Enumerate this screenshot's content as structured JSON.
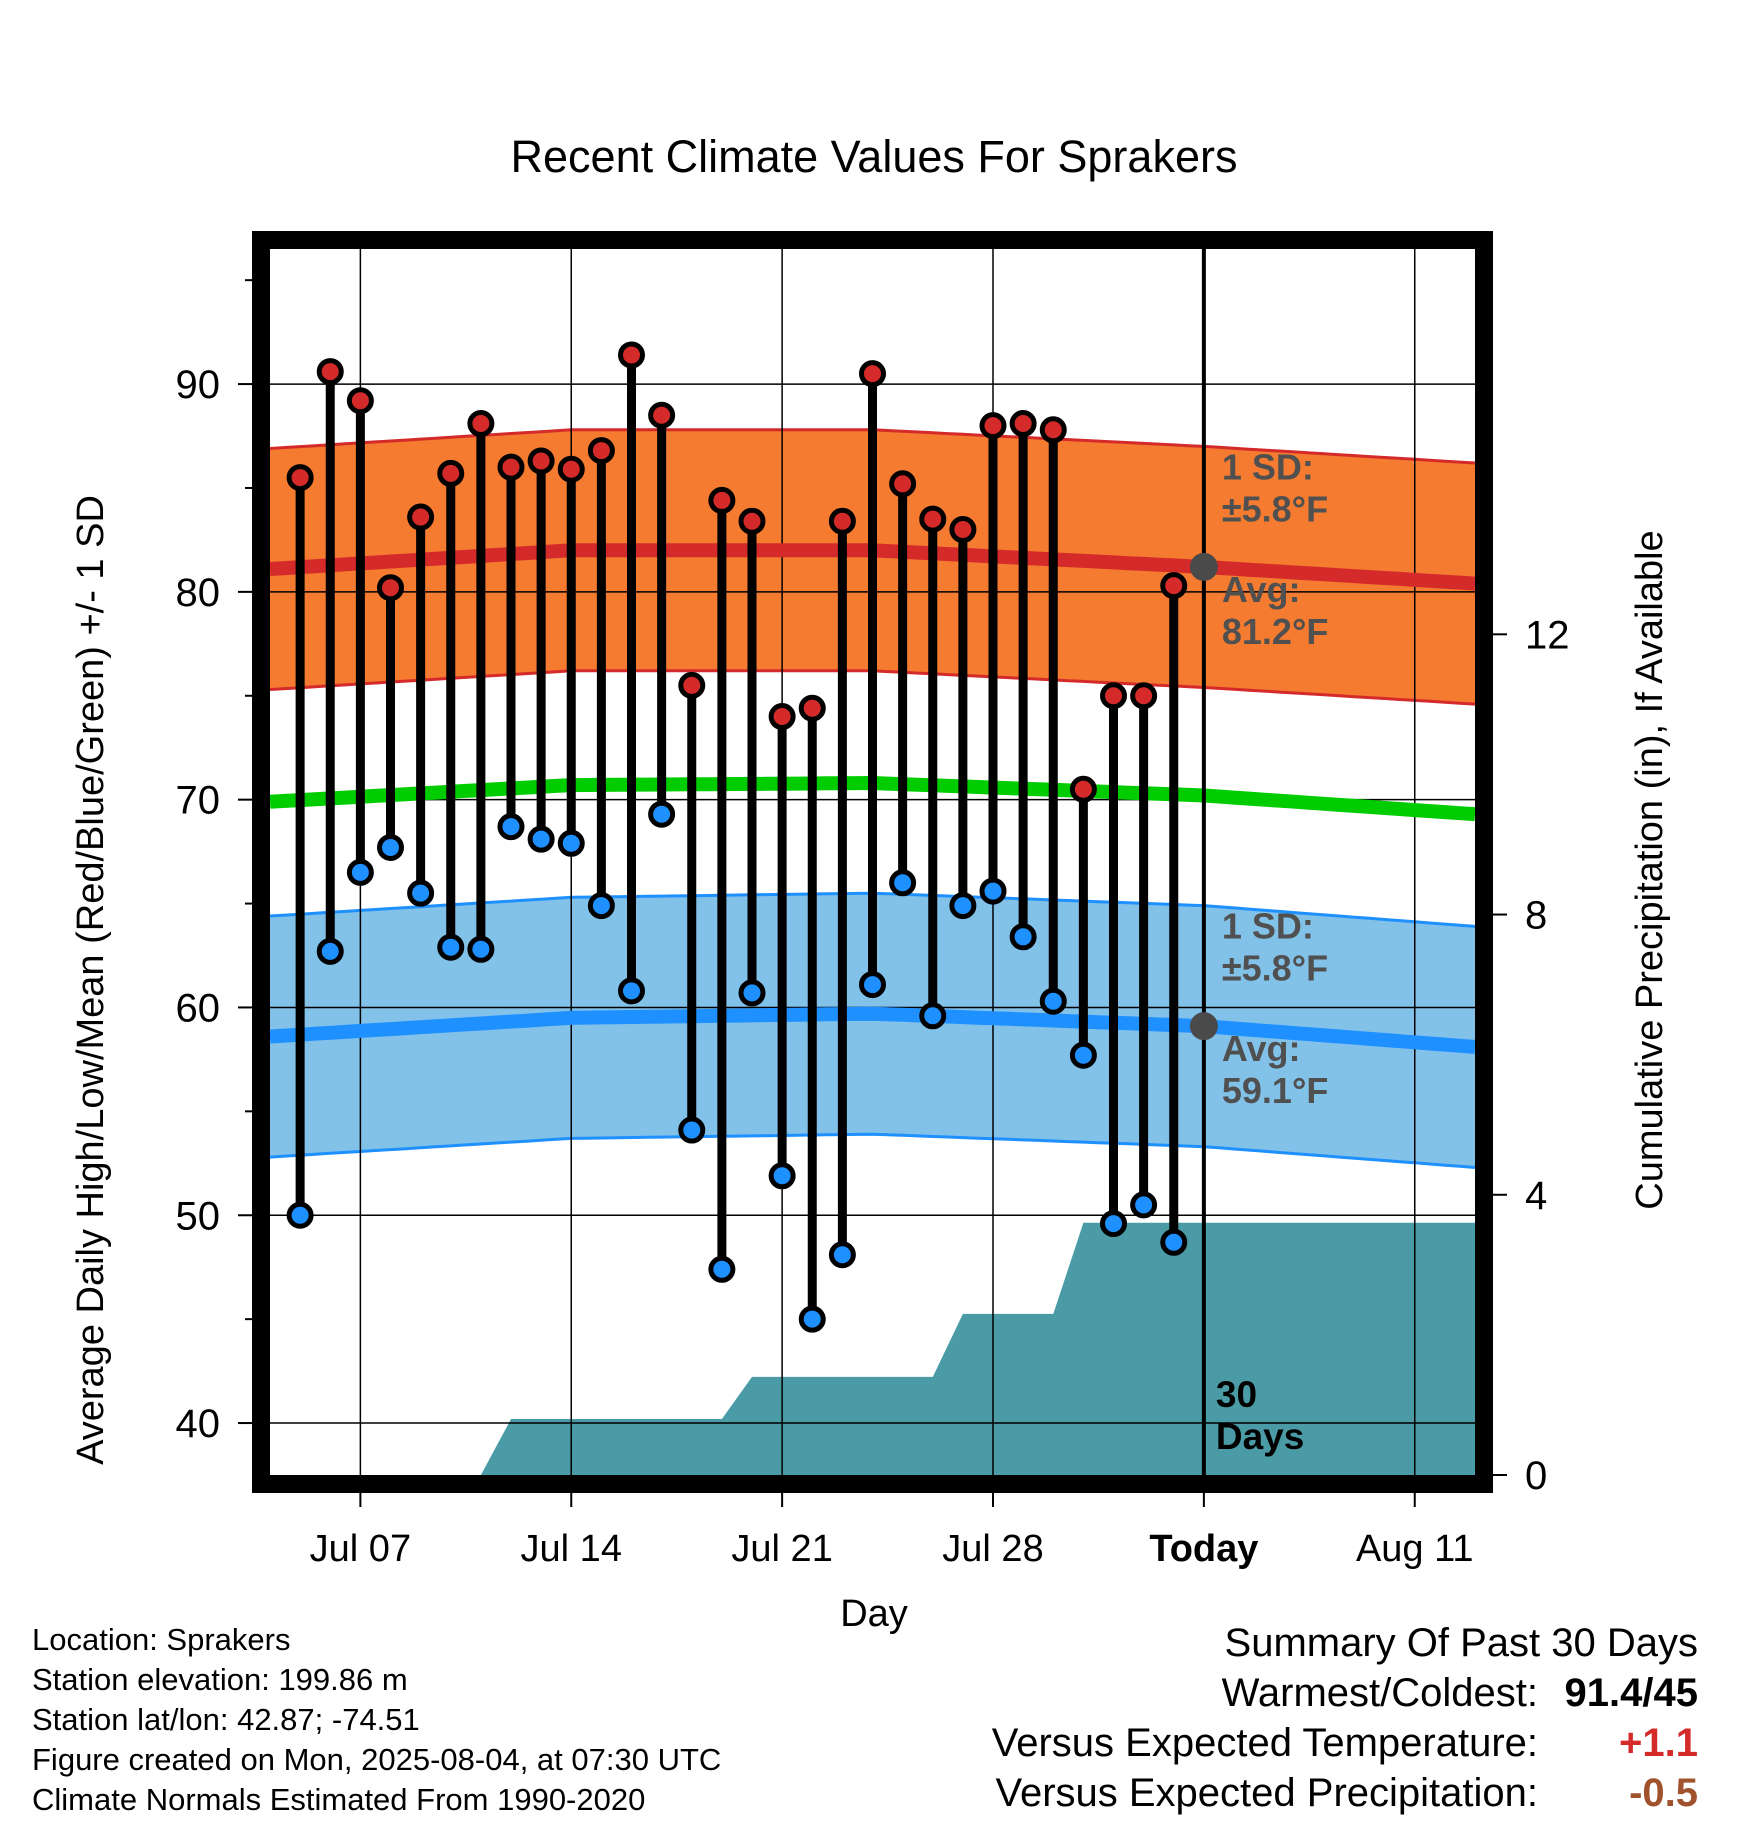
{
  "title": "Recent Climate Values For Sprakers",
  "chart_data": {
    "type": "line",
    "title": "Recent Climate Values For Sprakers",
    "xlabel": "Day",
    "ylabel": "Average Daily High/Low/Mean (Red/Blue/Green) +/- 1 SD",
    "y2label": "Cumulative Precipitation (in), If Available",
    "x_tick_labels": [
      "Jul 07",
      "Jul 14",
      "Jul 21",
      "Jul 28",
      "Today",
      "Aug 11"
    ],
    "x_ticks": [
      "2025-07-07",
      "2025-07-14",
      "2025-07-21",
      "2025-07-28",
      "2025-08-04",
      "2025-08-11"
    ],
    "x_range": [
      "2025-07-04",
      "2025-08-13"
    ],
    "ylim": [
      37.5,
      96.5
    ],
    "yticks": [
      40,
      50,
      60,
      70,
      80,
      90
    ],
    "y2lim": [
      0,
      17.5
    ],
    "y2ticks": [
      0,
      4,
      8,
      12
    ],
    "grid": true,
    "today": "2025-08-04",
    "today_annotation": "30 Days",
    "colors": {
      "high": "#d42a2a",
      "high_band": "#f47b30",
      "low": "#1e90ff",
      "low_band": "#82c1e8",
      "mean": "#00cc00",
      "precip": "#4a9ba5",
      "marker_avg": "#4a4a4a",
      "annotation": "#505050"
    },
    "daily": {
      "dates": [
        "2025-07-05",
        "2025-07-06",
        "2025-07-07",
        "2025-07-08",
        "2025-07-09",
        "2025-07-10",
        "2025-07-11",
        "2025-07-12",
        "2025-07-13",
        "2025-07-14",
        "2025-07-15",
        "2025-07-16",
        "2025-07-17",
        "2025-07-18",
        "2025-07-19",
        "2025-07-20",
        "2025-07-21",
        "2025-07-22",
        "2025-07-23",
        "2025-07-24",
        "2025-07-25",
        "2025-07-26",
        "2025-07-27",
        "2025-07-28",
        "2025-07-29",
        "2025-07-30",
        "2025-07-31",
        "2025-08-01",
        "2025-08-02",
        "2025-08-03"
      ],
      "high": [
        85.5,
        90.6,
        89.2,
        80.2,
        83.6,
        85.7,
        88.1,
        86.0,
        86.3,
        85.9,
        86.8,
        91.4,
        88.5,
        75.5,
        84.4,
        83.4,
        74.0,
        74.4,
        83.4,
        90.5,
        85.2,
        83.5,
        83.0,
        88.0,
        88.1,
        87.8,
        70.5,
        75.0,
        75.0,
        80.3
      ],
      "low": [
        50.0,
        62.7,
        66.5,
        67.7,
        65.5,
        62.9,
        62.8,
        68.7,
        68.1,
        67.9,
        64.9,
        60.8,
        69.3,
        54.1,
        47.4,
        60.7,
        51.9,
        45.0,
        48.1,
        61.1,
        66.0,
        59.6,
        64.9,
        65.6,
        63.4,
        60.3,
        57.7,
        49.6,
        50.5,
        48.7
      ]
    },
    "normals": {
      "dates": [
        "2025-07-04",
        "2025-07-14",
        "2025-07-24",
        "2025-08-04",
        "2025-08-13"
      ],
      "high_avg": [
        81.1,
        82.0,
        82.0,
        81.2,
        80.4
      ],
      "low_avg": [
        58.6,
        59.5,
        59.7,
        59.1,
        58.1
      ],
      "mean_avg": [
        69.9,
        70.7,
        70.8,
        70.2,
        69.3
      ],
      "sd": 5.8
    },
    "precip_cumulative": {
      "dates": [
        "2025-07-04",
        "2025-07-11",
        "2025-07-12",
        "2025-07-19",
        "2025-07-20",
        "2025-07-26",
        "2025-07-27",
        "2025-07-30",
        "2025-07-31",
        "2025-08-13"
      ],
      "values": [
        0,
        0,
        0.8,
        0.8,
        1.4,
        1.4,
        2.3,
        2.3,
        3.6,
        3.6
      ]
    },
    "annotations": {
      "high_sd": "1 SD:",
      "high_sd_val": "±5.8°F",
      "high_avg_label": "Avg:",
      "high_avg_val": "81.2°F",
      "low_sd": "1 SD:",
      "low_sd_val": "±5.8°F",
      "low_avg_label": "Avg:",
      "low_avg_val": "59.1°F"
    }
  },
  "info": {
    "location": "Location: Sprakers",
    "elevation": "Station elevation: 199.86 m",
    "latlon": "Station lat/lon: 42.87; -74.51",
    "created": "Figure created on Mon, 2025-08-04, at 07:30 UTC",
    "normals": "Climate Normals Estimated From 1990-2020"
  },
  "summary": {
    "title": "Summary Of Past 30 Days",
    "warmest_label": "Warmest/Coldest:",
    "warmest_value": "91.4/45",
    "temp_label": "Versus Expected Temperature:",
    "temp_value": "+1.1",
    "precip_label": "Versus Expected Precipitation:",
    "precip_value": "-0.5"
  }
}
